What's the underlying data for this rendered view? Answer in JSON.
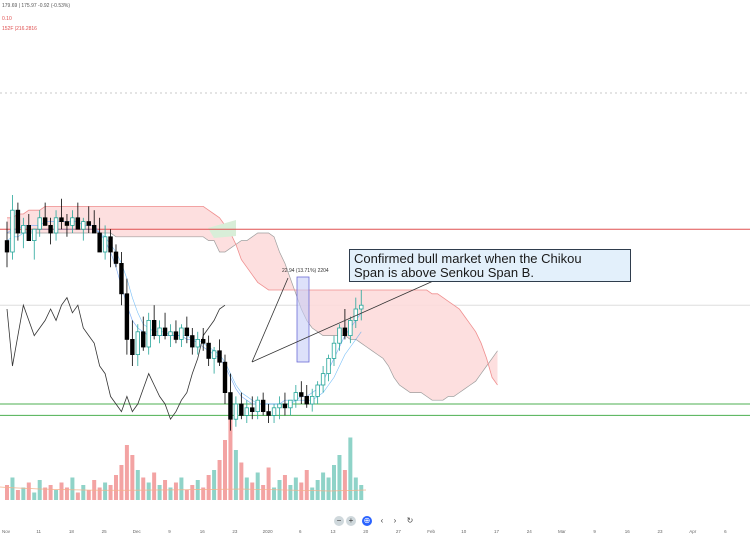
{
  "legend": {
    "ohlc": "179.69  | 175.97  -0.92  (-0.53%)",
    "indicator1": "0.10",
    "indicator2": "152F  |216.2816"
  },
  "annotation": {
    "line1": "Confirmed bull market when the Chikou",
    "line2": "Span is above Senkou Span B."
  },
  "measure_label": "22.94 (13.71%) 2204",
  "navigation": {
    "zoom_out": "−",
    "zoom_in": "+",
    "scroll_left": "‹",
    "scroll_right": "›",
    "reset": "↻"
  },
  "colors": {
    "bull": "#26a69a",
    "bear": "#000000",
    "cloud_bear": "#fdd9d9",
    "cloud_bull": "#d8eed8",
    "span_b": "#ef8f8f",
    "resistance": "#e05050",
    "support": "#4caf50",
    "kijun": "#2196f3",
    "chikou": "#333333",
    "vol_up": "#8fd3c8",
    "vol_down": "#f3a3a3",
    "measure": "#6b6bd6"
  },
  "chart_data": {
    "type": "candlestick",
    "x_ticks": [
      "Nov",
      "11",
      "18",
      "25",
      "Dec",
      "9",
      "16",
      "23",
      "2020",
      "6",
      "13",
      "20",
      "27",
      "Feb",
      "10",
      "17",
      "24",
      "Mar",
      "9",
      "16",
      "23",
      "Apr",
      "6"
    ],
    "ylim": [
      130,
      230
    ],
    "price_marker": 176,
    "resistance_level": 196,
    "support_levels": [
      150,
      147
    ],
    "candles": [
      {
        "o": 193,
        "h": 198,
        "l": 186,
        "c": 190
      },
      {
        "o": 190,
        "h": 205,
        "l": 188,
        "c": 201
      },
      {
        "o": 201,
        "h": 203,
        "l": 193,
        "c": 195
      },
      {
        "o": 195,
        "h": 199,
        "l": 191,
        "c": 197
      },
      {
        "o": 197,
        "h": 200,
        "l": 194,
        "c": 193
      },
      {
        "o": 193,
        "h": 196,
        "l": 188,
        "c": 196
      },
      {
        "o": 196,
        "h": 201,
        "l": 194,
        "c": 199
      },
      {
        "o": 199,
        "h": 203,
        "l": 197,
        "c": 197
      },
      {
        "o": 197,
        "h": 199,
        "l": 192,
        "c": 195
      },
      {
        "o": 195,
        "h": 201,
        "l": 193,
        "c": 199
      },
      {
        "o": 199,
        "h": 204,
        "l": 196,
        "c": 198
      },
      {
        "o": 198,
        "h": 200,
        "l": 194,
        "c": 197
      },
      {
        "o": 197,
        "h": 201,
        "l": 195,
        "c": 199
      },
      {
        "o": 199,
        "h": 203,
        "l": 196,
        "c": 196
      },
      {
        "o": 196,
        "h": 199,
        "l": 193,
        "c": 198
      },
      {
        "o": 198,
        "h": 202,
        "l": 195,
        "c": 197
      },
      {
        "o": 197,
        "h": 201,
        "l": 195,
        "c": 195
      },
      {
        "o": 195,
        "h": 199,
        "l": 190,
        "c": 190
      },
      {
        "o": 190,
        "h": 197,
        "l": 188,
        "c": 194
      },
      {
        "o": 194,
        "h": 196,
        "l": 186,
        "c": 190
      },
      {
        "o": 190,
        "h": 192,
        "l": 186,
        "c": 187
      },
      {
        "o": 187,
        "h": 190,
        "l": 176,
        "c": 179
      },
      {
        "o": 179,
        "h": 183,
        "l": 163,
        "c": 167
      },
      {
        "o": 167,
        "h": 172,
        "l": 160,
        "c": 163
      },
      {
        "o": 163,
        "h": 171,
        "l": 160,
        "c": 169
      },
      {
        "o": 169,
        "h": 173,
        "l": 164,
        "c": 165
      },
      {
        "o": 165,
        "h": 174,
        "l": 163,
        "c": 172
      },
      {
        "o": 172,
        "h": 176,
        "l": 167,
        "c": 168
      },
      {
        "o": 168,
        "h": 172,
        "l": 166,
        "c": 170
      },
      {
        "o": 170,
        "h": 174,
        "l": 167,
        "c": 168
      },
      {
        "o": 168,
        "h": 171,
        "l": 165,
        "c": 169
      },
      {
        "o": 169,
        "h": 172,
        "l": 166,
        "c": 167
      },
      {
        "o": 167,
        "h": 171,
        "l": 165,
        "c": 170
      },
      {
        "o": 170,
        "h": 173,
        "l": 166,
        "c": 168
      },
      {
        "o": 168,
        "h": 170,
        "l": 163,
        "c": 165
      },
      {
        "o": 165,
        "h": 169,
        "l": 163,
        "c": 167
      },
      {
        "o": 167,
        "h": 170,
        "l": 164,
        "c": 166
      },
      {
        "o": 166,
        "h": 168,
        "l": 160,
        "c": 162
      },
      {
        "o": 162,
        "h": 165,
        "l": 158,
        "c": 164
      },
      {
        "o": 164,
        "h": 167,
        "l": 160,
        "c": 161
      },
      {
        "o": 161,
        "h": 163,
        "l": 150,
        "c": 153
      },
      {
        "o": 153,
        "h": 158,
        "l": 143,
        "c": 146
      },
      {
        "o": 146,
        "h": 152,
        "l": 144,
        "c": 150
      },
      {
        "o": 150,
        "h": 153,
        "l": 146,
        "c": 147
      },
      {
        "o": 147,
        "h": 151,
        "l": 145,
        "c": 149
      },
      {
        "o": 149,
        "h": 152,
        "l": 146,
        "c": 148
      },
      {
        "o": 148,
        "h": 152,
        "l": 146,
        "c": 151
      },
      {
        "o": 151,
        "h": 153,
        "l": 147,
        "c": 148
      },
      {
        "o": 148,
        "h": 150,
        "l": 145,
        "c": 147
      },
      {
        "o": 147,
        "h": 150,
        "l": 145,
        "c": 149
      },
      {
        "o": 149,
        "h": 152,
        "l": 146,
        "c": 150
      },
      {
        "o": 150,
        "h": 153,
        "l": 147,
        "c": 149
      },
      {
        "o": 149,
        "h": 151,
        "l": 147,
        "c": 151
      },
      {
        "o": 151,
        "h": 155,
        "l": 149,
        "c": 153
      },
      {
        "o": 153,
        "h": 156,
        "l": 150,
        "c": 152
      },
      {
        "o": 152,
        "h": 155,
        "l": 149,
        "c": 150
      },
      {
        "o": 150,
        "h": 154,
        "l": 148,
        "c": 152
      },
      {
        "o": 152,
        "h": 156,
        "l": 150,
        "c": 155
      },
      {
        "o": 155,
        "h": 160,
        "l": 153,
        "c": 158
      },
      {
        "o": 158,
        "h": 163,
        "l": 156,
        "c": 162
      },
      {
        "o": 162,
        "h": 168,
        "l": 160,
        "c": 166
      },
      {
        "o": 166,
        "h": 171,
        "l": 164,
        "c": 170
      },
      {
        "o": 170,
        "h": 175,
        "l": 167,
        "c": 168
      },
      {
        "o": 168,
        "h": 173,
        "l": 166,
        "c": 172
      },
      {
        "o": 172,
        "h": 178,
        "l": 170,
        "c": 175
      },
      {
        "o": 175,
        "h": 180,
        "l": 172,
        "c": 176
      }
    ],
    "volume": [
      6,
      9,
      4,
      5,
      7,
      3,
      8,
      5,
      6,
      4,
      7,
      5,
      9,
      3,
      6,
      4,
      8,
      5,
      7,
      6,
      10,
      14,
      22,
      18,
      12,
      9,
      7,
      11,
      6,
      8,
      5,
      7,
      9,
      4,
      6,
      8,
      5,
      10,
      12,
      16,
      24,
      34,
      20,
      15,
      9,
      7,
      11,
      6,
      13,
      5,
      8,
      10,
      6,
      9,
      7,
      12,
      5,
      8,
      11,
      9,
      14,
      18,
      12,
      25,
      9,
      6
    ],
    "tenkan": [
      195,
      196,
      196,
      197,
      197,
      197,
      197,
      198,
      198,
      198,
      198,
      198,
      198,
      198,
      197,
      197,
      197,
      195,
      193,
      190,
      186,
      181,
      176,
      172,
      170,
      169,
      168,
      168,
      168,
      168,
      168,
      168,
      168,
      167,
      167,
      166,
      165,
      164,
      163,
      162,
      160,
      157,
      154,
      152,
      151,
      150,
      150,
      150,
      150,
      150,
      150,
      151,
      151,
      151,
      152,
      152,
      153,
      154,
      156,
      159,
      162,
      165,
      168,
      170,
      172,
      174
    ],
    "kijun": [
      193,
      194,
      194,
      195,
      195,
      196,
      196,
      196,
      196,
      196,
      196,
      196,
      196,
      196,
      196,
      196,
      196,
      195,
      194,
      192,
      190,
      187,
      183,
      178,
      174,
      171,
      170,
      169,
      169,
      169,
      168,
      168,
      168,
      168,
      167,
      167,
      166,
      165,
      164,
      163,
      161,
      158,
      155,
      153,
      152,
      151,
      150,
      150,
      150,
      150,
      150,
      150,
      150,
      151,
      151,
      151,
      151,
      152,
      153,
      155,
      157,
      160,
      163,
      165,
      167,
      169
    ],
    "chikou": [
      175,
      160,
      168,
      176,
      172,
      168,
      170,
      172,
      175,
      172,
      176,
      178,
      174,
      176,
      170,
      168,
      166,
      160,
      158,
      152,
      150,
      148,
      152,
      148,
      150,
      154,
      158,
      155,
      152,
      150,
      146,
      148,
      151,
      153,
      158,
      162,
      168,
      170,
      172,
      175,
      176
    ],
    "span_a": [
      195,
      195,
      195,
      195,
      195,
      195,
      195,
      195,
      195,
      195,
      195,
      195,
      195,
      195,
      195,
      195,
      195,
      195,
      195,
      195,
      194,
      194,
      194,
      194,
      194,
      194,
      194,
      194,
      194,
      194,
      194,
      194,
      194,
      194,
      194,
      194,
      194,
      193,
      193,
      190,
      190,
      191,
      192,
      193,
      193,
      194,
      195,
      195,
      195,
      194,
      190,
      187,
      183,
      179,
      175,
      172,
      170,
      169,
      168,
      168,
      168,
      168,
      168,
      167,
      167,
      166,
      165,
      164,
      163,
      162,
      160,
      157,
      155,
      154,
      153,
      153,
      153,
      152,
      151,
      151,
      151,
      152,
      152,
      153,
      154,
      155,
      156,
      158,
      160,
      162,
      164
    ],
    "span_b": [
      199,
      199,
      200,
      200,
      201,
      201,
      201,
      202,
      202,
      202,
      202,
      202,
      202,
      202,
      202,
      202,
      202,
      202,
      202,
      202,
      202,
      202,
      202,
      202,
      202,
      202,
      202,
      202,
      202,
      202,
      202,
      202,
      202,
      202,
      202,
      202,
      202,
      201,
      200,
      199,
      197,
      195,
      192,
      188,
      186,
      184,
      182,
      181,
      180,
      180,
      180,
      180,
      180,
      180,
      180,
      180,
      180,
      180,
      180,
      180,
      180,
      180,
      180,
      180,
      180,
      180,
      180,
      180,
      180,
      180,
      180,
      180,
      180,
      180,
      180,
      180,
      180,
      180,
      179,
      179,
      178,
      177,
      176,
      175,
      173,
      171,
      169,
      166,
      162,
      157,
      155
    ]
  }
}
